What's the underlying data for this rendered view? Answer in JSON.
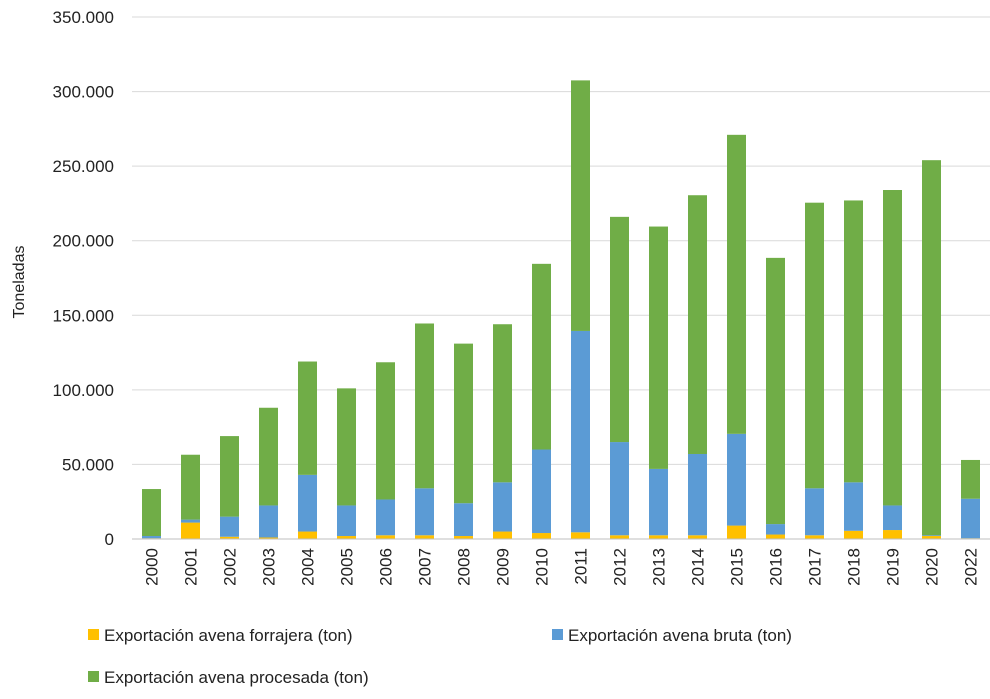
{
  "chart_data": {
    "type": "bar",
    "stacked": true,
    "ylabel": "Toneladas",
    "xlabel": "",
    "ylim": [
      0,
      350000
    ],
    "yticks": [
      0,
      50000,
      100000,
      150000,
      200000,
      250000,
      300000,
      350000
    ],
    "ytick_labels": [
      "0",
      "50.000",
      "100.000",
      "150.000",
      "200.000",
      "250.000",
      "300.000",
      "350.000"
    ],
    "grid": true,
    "legend_position": "bottom",
    "categories": [
      "2000",
      "2001",
      "2002",
      "2003",
      "2004",
      "2005",
      "2006",
      "2007",
      "2008",
      "2009",
      "2010",
      "2011",
      "2012",
      "2013",
      "2014",
      "2015",
      "2016",
      "2017",
      "2018",
      "2019",
      "2020",
      "2022"
    ],
    "series": [
      {
        "name": "Exportación avena forrajera (ton)",
        "color": "#FFC000",
        "values": [
          500,
          11000,
          1500,
          1000,
          5000,
          2000,
          2500,
          2500,
          2000,
          5000,
          4000,
          4500,
          2500,
          2500,
          2500,
          9000,
          3000,
          2500,
          5500,
          6000,
          2000,
          500
        ]
      },
      {
        "name": "Exportación avena bruta (ton)",
        "color": "#5B9BD5",
        "values": [
          1500,
          2000,
          13500,
          21500,
          38000,
          20500,
          24000,
          31500,
          22000,
          33000,
          56000,
          135000,
          62500,
          44500,
          54500,
          61500,
          7000,
          31500,
          32500,
          16500,
          500,
          26500
        ]
      },
      {
        "name": "Exportación avena procesada (ton)",
        "color": "#70AD47",
        "values": [
          31500,
          43500,
          54000,
          65500,
          76000,
          78500,
          92000,
          110500,
          107000,
          106000,
          124500,
          168000,
          151000,
          162500,
          173500,
          200500,
          178500,
          191500,
          189000,
          211500,
          251500,
          26000
        ]
      }
    ]
  }
}
